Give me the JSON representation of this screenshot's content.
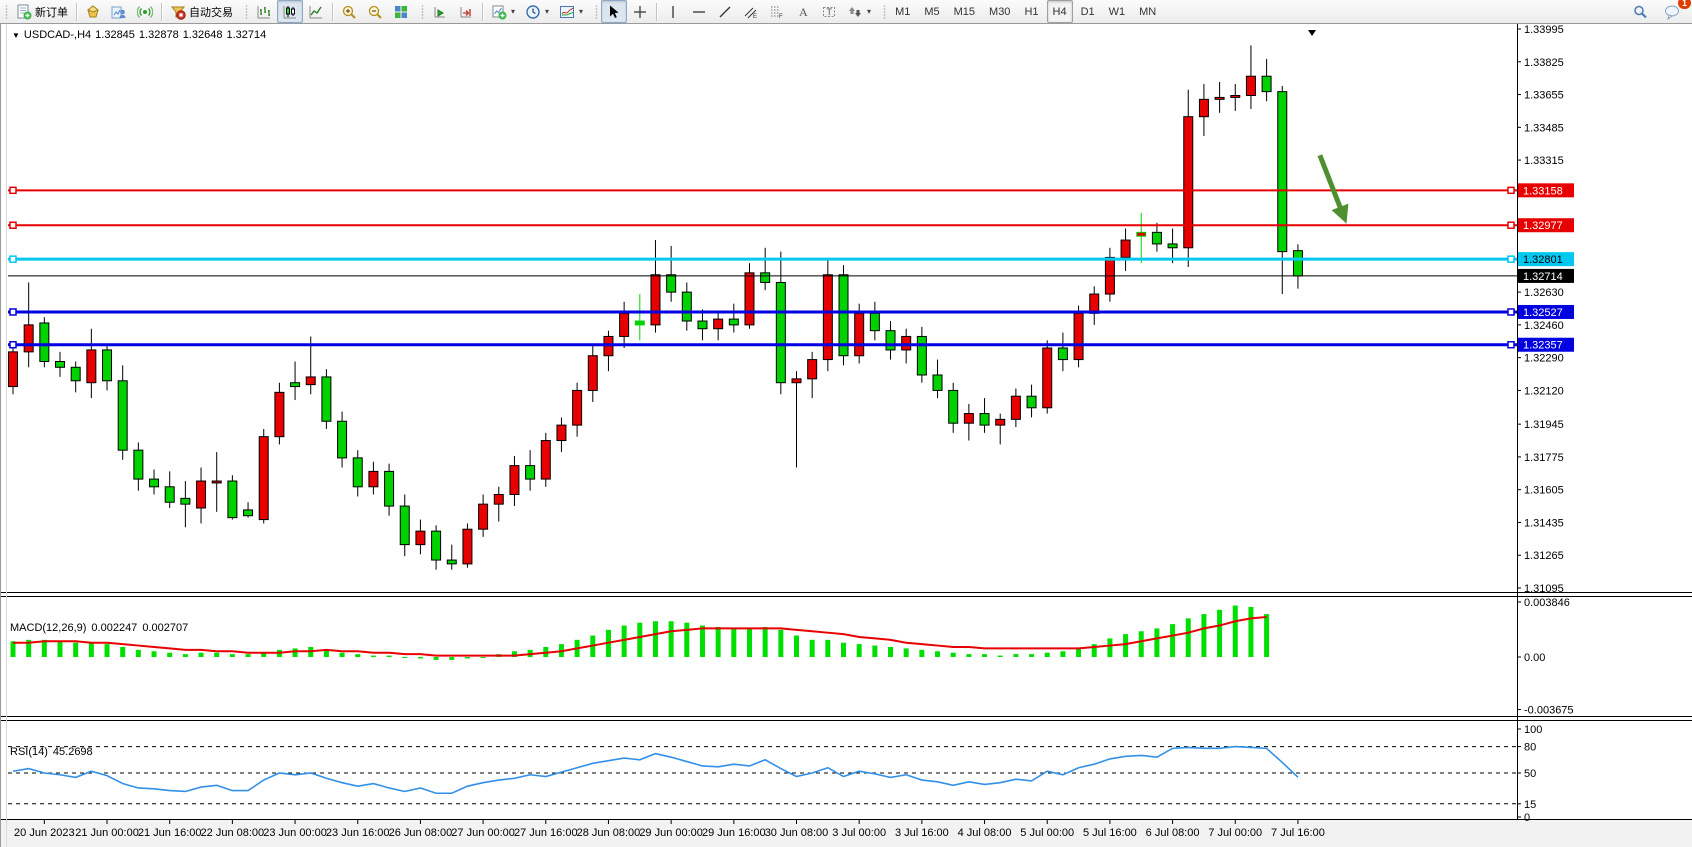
{
  "toolbar": {
    "new_order_label": "新订单",
    "autotrading_label": "自动交易",
    "timeframes": [
      "M1",
      "M5",
      "M15",
      "M30",
      "H1",
      "H4",
      "D1",
      "W1",
      "MN"
    ],
    "active_timeframe": "H4",
    "notification_badge": "1"
  },
  "chart_header": {
    "symbol_period": "USDCAD-,H4",
    "open": "1.32845",
    "high": "1.32878",
    "low": "1.32648",
    "close": "1.32714"
  },
  "indicators": {
    "macd": {
      "label": "MACD(12,26,9)",
      "value_main": "0.002247",
      "value_signal": "0.002707",
      "axis_labels": [
        {
          "v": 0.003846,
          "text": "0.003846"
        },
        {
          "v": 0,
          "text": "0.00"
        },
        {
          "v": -0.003675,
          "text": "-0.003675"
        }
      ]
    },
    "rsi": {
      "label": "RSI(14)",
      "value": "45.2698",
      "axis_labels": [
        {
          "v": 100,
          "text": "100"
        },
        {
          "v": 80,
          "text": "80"
        },
        {
          "v": 50,
          "text": "50"
        },
        {
          "v": 15,
          "text": "15"
        },
        {
          "v": 0,
          "text": "0"
        }
      ],
      "dashed_levels": [
        80,
        50,
        15
      ]
    }
  },
  "price_axis": {
    "ticks": [
      1.33995,
      1.33825,
      1.33655,
      1.33485,
      1.33315,
      1.3263,
      1.3246,
      1.3229,
      1.3212,
      1.31945,
      1.31775,
      1.31605,
      1.31435,
      1.31265,
      1.31095
    ]
  },
  "hlines": [
    {
      "price": 1.33158,
      "label": "1.33158",
      "color": "#e80000",
      "width": 2,
      "label_bg": "#e80000",
      "label_fg": "#ffffff"
    },
    {
      "price": 1.32977,
      "label": "1.32977",
      "color": "#e80000",
      "width": 2,
      "label_bg": "#e80000",
      "label_fg": "#ffffff"
    },
    {
      "price": 1.32801,
      "label": "1.32801",
      "color": "#00c8f0",
      "width": 3,
      "label_bg": "#00c8f0",
      "label_fg": "#000000"
    },
    {
      "price": 1.32527,
      "label": "1.32527",
      "color": "#0000e0",
      "width": 3,
      "label_bg": "#0000e0",
      "label_fg": "#ffffff"
    },
    {
      "price": 1.32357,
      "label": "1.32357",
      "color": "#0000e0",
      "width": 3,
      "label_bg": "#0000e0",
      "label_fg": "#ffffff"
    }
  ],
  "current_price": {
    "price": 1.32714,
    "label": "1.32714",
    "label_bg": "#000000",
    "label_fg": "#ffffff"
  },
  "time_axis": {
    "labels": [
      {
        "i": 2,
        "text": "20 Jun 2023"
      },
      {
        "i": 6,
        "text": "21 Jun 00:00"
      },
      {
        "i": 10,
        "text": "21 Jun 16:00"
      },
      {
        "i": 14,
        "text": "22 Jun 08:00"
      },
      {
        "i": 18,
        "text": "23 Jun 00:00"
      },
      {
        "i": 22,
        "text": "23 Jun 16:00"
      },
      {
        "i": 26,
        "text": "26 Jun 08:00"
      },
      {
        "i": 30,
        "text": "27 Jun 00:00"
      },
      {
        "i": 34,
        "text": "27 Jun 16:00"
      },
      {
        "i": 38,
        "text": "28 Jun 08:00"
      },
      {
        "i": 42,
        "text": "29 Jun 00:00"
      },
      {
        "i": 46,
        "text": "29 Jun 16:00"
      },
      {
        "i": 50,
        "text": "30 Jun 08:00"
      },
      {
        "i": 54,
        "text": "3 Jul 00:00"
      },
      {
        "i": 58,
        "text": "3 Jul 16:00"
      },
      {
        "i": 62,
        "text": "4 Jul 08:00"
      },
      {
        "i": 66,
        "text": "5 Jul 00:00"
      },
      {
        "i": 70,
        "text": "5 Jul 16:00"
      },
      {
        "i": 74,
        "text": "6 Jul 08:00"
      },
      {
        "i": 78,
        "text": "7 Jul 00:00"
      },
      {
        "i": 82,
        "text": "7 Jul 16:00"
      }
    ]
  },
  "chart_data": {
    "type": "candlestick",
    "symbol": "USDCAD",
    "timeframe": "H4",
    "ylim": [
      1.31095,
      1.33995
    ],
    "colors": {
      "bull": "#e80000",
      "bear": "#00d200",
      "wick": "#000000",
      "macd_hist": "#00e000",
      "macd_signal": "#e80000",
      "rsi_line": "#3390e8"
    },
    "candles": [
      [
        "20 Jun 00:00",
        1.3214,
        1.3235,
        1.321,
        1.3232
      ],
      [
        "20 Jun 04:00",
        1.3232,
        1.3268,
        1.3224,
        1.3246
      ],
      [
        "20 Jun 08:00",
        1.3247,
        1.325,
        1.3224,
        1.3227
      ],
      [
        "20 Jun 12:00",
        1.3227,
        1.3232,
        1.3219,
        1.3224
      ],
      [
        "20 Jun 16:00",
        1.3224,
        1.3227,
        1.3211,
        1.3217
      ],
      [
        "20 Jun 20:00",
        1.3216,
        1.3244,
        1.3208,
        1.3233
      ],
      [
        "21 Jun 00:00",
        1.3233,
        1.3236,
        1.3212,
        1.3217
      ],
      [
        "21 Jun 04:00",
        1.3217,
        1.3225,
        1.3176,
        1.3181
      ],
      [
        "21 Jun 08:00",
        1.3181,
        1.3185,
        1.316,
        1.3166
      ],
      [
        "21 Jun 12:00",
        1.3166,
        1.3171,
        1.3158,
        1.3162
      ],
      [
        "21 Jun 16:00",
        1.3162,
        1.317,
        1.3151,
        1.3154
      ],
      [
        "21 Jun 20:00",
        1.3156,
        1.3165,
        1.3141,
        1.3153
      ],
      [
        "22 Jun 00:00",
        1.3151,
        1.3172,
        1.3143,
        1.3165
      ],
      [
        "22 Jun 04:00",
        1.3164,
        1.318,
        1.3149,
        1.3165
      ],
      [
        "22 Jun 08:00",
        1.3165,
        1.3168,
        1.3145,
        1.3146
      ],
      [
        "22 Jun 12:00",
        1.315,
        1.3154,
        1.3146,
        1.3147
      ],
      [
        "22 Jun 16:00",
        1.3145,
        1.3192,
        1.3143,
        1.3188
      ],
      [
        "22 Jun 20:00",
        1.3188,
        1.3216,
        1.3184,
        1.3211
      ],
      [
        "23 Jun 00:00",
        1.3216,
        1.3227,
        1.3207,
        1.3214
      ],
      [
        "23 Jun 04:00",
        1.3215,
        1.324,
        1.321,
        1.3219
      ],
      [
        "23 Jun 08:00",
        1.3219,
        1.3223,
        1.3192,
        1.3196
      ],
      [
        "23 Jun 12:00",
        1.3196,
        1.3201,
        1.3172,
        1.3177
      ],
      [
        "23 Jun 16:00",
        1.3177,
        1.3181,
        1.3157,
        1.3162
      ],
      [
        "23 Jun 20:00",
        1.3162,
        1.3175,
        1.3158,
        1.317
      ],
      [
        "26 Jun 00:00",
        1.317,
        1.3174,
        1.3147,
        1.3152
      ],
      [
        "26 Jun 04:00",
        1.3152,
        1.3158,
        1.3126,
        1.3132
      ],
      [
        "26 Jun 08:00",
        1.3132,
        1.3145,
        1.3127,
        1.3139
      ],
      [
        "26 Jun 12:00",
        1.3139,
        1.3142,
        1.3119,
        1.3124
      ],
      [
        "26 Jun 16:00",
        1.3124,
        1.3132,
        1.3119,
        1.3122
      ],
      [
        "26 Jun 20:00",
        1.3122,
        1.3143,
        1.312,
        1.314
      ],
      [
        "27 Jun 00:00",
        1.314,
        1.3158,
        1.3136,
        1.3153
      ],
      [
        "27 Jun 04:00",
        1.3153,
        1.3162,
        1.3144,
        1.3158
      ],
      [
        "27 Jun 08:00",
        1.3158,
        1.3178,
        1.3152,
        1.3173
      ],
      [
        "27 Jun 12:00",
        1.3173,
        1.3181,
        1.316,
        1.3166
      ],
      [
        "27 Jun 16:00",
        1.3166,
        1.319,
        1.3162,
        1.3186
      ],
      [
        "27 Jun 20:00",
        1.3186,
        1.3198,
        1.318,
        1.3194
      ],
      [
        "28 Jun 00:00",
        1.3194,
        1.3216,
        1.3188,
        1.3212
      ],
      [
        "28 Jun 04:00",
        1.3212,
        1.3235,
        1.3206,
        1.323
      ],
      [
        "28 Jun 08:00",
        1.323,
        1.3243,
        1.3222,
        1.324
      ],
      [
        "28 Jun 12:00",
        1.324,
        1.3258,
        1.3234,
        1.3252
      ],
      [
        "28 Jun 16:00",
        1.3248,
        1.3262,
        1.3238,
        1.3246
      ],
      [
        "28 Jun 20:00",
        1.3246,
        1.329,
        1.3242,
        1.3272
      ],
      [
        "29 Jun 00:00",
        1.3272,
        1.3287,
        1.3258,
        1.3263
      ],
      [
        "29 Jun 04:00",
        1.3263,
        1.3268,
        1.3243,
        1.3248
      ],
      [
        "29 Jun 08:00",
        1.3248,
        1.3254,
        1.3238,
        1.3244
      ],
      [
        "29 Jun 12:00",
        1.3244,
        1.3252,
        1.3238,
        1.3249
      ],
      [
        "29 Jun 16:00",
        1.3249,
        1.3257,
        1.3242,
        1.3246
      ],
      [
        "29 Jun 20:00",
        1.3246,
        1.3278,
        1.3244,
        1.3273
      ],
      [
        "30 Jun 00:00",
        1.3273,
        1.3286,
        1.3264,
        1.3268
      ],
      [
        "30 Jun 04:00",
        1.3268,
        1.3284,
        1.321,
        1.3216
      ],
      [
        "30 Jun 08:00",
        1.3216,
        1.3222,
        1.3172,
        1.3218
      ],
      [
        "30 Jun 12:00",
        1.3218,
        1.3232,
        1.3208,
        1.3228
      ],
      [
        "30 Jun 16:00",
        1.3228,
        1.328,
        1.3222,
        1.3272
      ],
      [
        "30 Jun 20:00",
        1.3272,
        1.3277,
        1.3225,
        1.323
      ],
      [
        "3 Jul 00:00",
        1.323,
        1.3257,
        1.3226,
        1.3252
      ],
      [
        "3 Jul 04:00",
        1.3252,
        1.3258,
        1.3238,
        1.3243
      ],
      [
        "3 Jul 08:00",
        1.3243,
        1.3248,
        1.3228,
        1.3233
      ],
      [
        "3 Jul 12:00",
        1.3233,
        1.3244,
        1.3226,
        1.324
      ],
      [
        "3 Jul 16:00",
        1.324,
        1.3245,
        1.3216,
        1.322
      ],
      [
        "3 Jul 20:00",
        1.322,
        1.3228,
        1.3208,
        1.3212
      ],
      [
        "4 Jul 00:00",
        1.3212,
        1.3216,
        1.319,
        1.3195
      ],
      [
        "4 Jul 04:00",
        1.3195,
        1.3205,
        1.3186,
        1.32
      ],
      [
        "4 Jul 08:00",
        1.32,
        1.3208,
        1.319,
        1.3194
      ],
      [
        "4 Jul 12:00",
        1.3194,
        1.32,
        1.3184,
        1.3197
      ],
      [
        "4 Jul 16:00",
        1.3197,
        1.3213,
        1.3193,
        1.3209
      ],
      [
        "4 Jul 20:00",
        1.3209,
        1.3215,
        1.3198,
        1.3203
      ],
      [
        "5 Jul 00:00",
        1.3203,
        1.3238,
        1.32,
        1.3234
      ],
      [
        "5 Jul 04:00",
        1.3234,
        1.3242,
        1.3222,
        1.3228
      ],
      [
        "5 Jul 08:00",
        1.3228,
        1.3256,
        1.3224,
        1.3252
      ],
      [
        "5 Jul 12:00",
        1.3252,
        1.3266,
        1.3246,
        1.3262
      ],
      [
        "5 Jul 16:00",
        1.3262,
        1.3286,
        1.3258,
        1.3281
      ],
      [
        "5 Jul 20:00",
        1.3281,
        1.3296,
        1.3274,
        1.329
      ],
      [
        "6 Jul 00:00",
        1.3292,
        1.3304,
        1.3278,
        1.3294
      ],
      [
        "6 Jul 04:00",
        1.3294,
        1.3299,
        1.3284,
        1.3288
      ],
      [
        "6 Jul 08:00",
        1.3288,
        1.3296,
        1.3278,
        1.3286
      ],
      [
        "6 Jul 12:00",
        1.3286,
        1.3368,
        1.3276,
        1.3354
      ],
      [
        "6 Jul 16:00",
        1.3354,
        1.3371,
        1.3344,
        1.3363
      ],
      [
        "6 Jul 20:00",
        1.3363,
        1.3372,
        1.3356,
        1.3364
      ],
      [
        "7 Jul 00:00",
        1.3364,
        1.3371,
        1.3357,
        1.3365
      ],
      [
        "7 Jul 04:00",
        1.3365,
        1.3391,
        1.3358,
        1.3375
      ],
      [
        "7 Jul 08:00",
        1.3375,
        1.3384,
        1.3362,
        1.3367
      ],
      [
        "7 Jul 12:00",
        1.3367,
        1.337,
        1.3262,
        1.3284
      ],
      [
        "7 Jul 16:00",
        1.32845,
        1.32878,
        1.32648,
        1.32714
      ]
    ],
    "cross_bars": [
      40,
      72
    ],
    "macd_histogram": [
      0.0011,
      0.0012,
      0.0012,
      0.0011,
      0.001,
      0.001,
      0.0009,
      0.0007,
      0.0005,
      0.0004,
      0.0003,
      0.0002,
      0.0003,
      0.0003,
      0.0002,
      0.0002,
      0.0003,
      0.0005,
      0.0006,
      0.0007,
      0.0005,
      0.0003,
      0.0002,
      0.0001,
      0.0001,
      0.0,
      -0.0001,
      -0.0002,
      -0.0002,
      -0.0001,
      0.0,
      0.0002,
      0.0004,
      0.0005,
      0.0007,
      0.0009,
      0.0012,
      0.0015,
      0.0019,
      0.0022,
      0.0024,
      0.0025,
      0.0025,
      0.0024,
      0.0022,
      0.0021,
      0.002,
      0.002,
      0.0021,
      0.0019,
      0.0015,
      0.0012,
      0.0012,
      0.001,
      0.0009,
      0.0008,
      0.0007,
      0.0006,
      0.0005,
      0.0004,
      0.0003,
      0.0002,
      0.0002,
      0.0001,
      0.0002,
      0.0002,
      0.0003,
      0.0004,
      0.0006,
      0.0009,
      0.0013,
      0.0016,
      0.0018,
      0.002,
      0.0023,
      0.0027,
      0.003,
      0.0033,
      0.0036,
      0.0035,
      0.003,
      0.0024,
      0.002247
    ],
    "macd_signal": [
      0.001,
      0.001,
      0.0011,
      0.0011,
      0.0011,
      0.001,
      0.001,
      0.0009,
      0.0008,
      0.0007,
      0.0006,
      0.0005,
      0.0005,
      0.0004,
      0.0004,
      0.0003,
      0.0003,
      0.0003,
      0.0004,
      0.0004,
      0.0005,
      0.0004,
      0.0004,
      0.0003,
      0.0003,
      0.0002,
      0.0002,
      0.0001,
      0.0001,
      0.0001,
      0.0001,
      0.0001,
      0.0001,
      0.0002,
      0.0003,
      0.0004,
      0.0006,
      0.0008,
      0.001,
      0.0012,
      0.0014,
      0.0016,
      0.0018,
      0.0019,
      0.002,
      0.002,
      0.002,
      0.002,
      0.002,
      0.002,
      0.0019,
      0.0018,
      0.0017,
      0.0016,
      0.0014,
      0.0013,
      0.0012,
      0.001,
      0.0009,
      0.0008,
      0.0007,
      0.0007,
      0.0006,
      0.0006,
      0.0006,
      0.0006,
      0.0006,
      0.0006,
      0.0006,
      0.0007,
      0.0008,
      0.0009,
      0.0011,
      0.0013,
      0.0015,
      0.0017,
      0.002,
      0.0022,
      0.0025,
      0.0027,
      0.0028,
      0.0028,
      0.002707
    ],
    "rsi": [
      52,
      55,
      50,
      48,
      45,
      52,
      47,
      38,
      33,
      32,
      30,
      29,
      34,
      36,
      30,
      30,
      42,
      50,
      48,
      50,
      44,
      39,
      35,
      38,
      33,
      29,
      33,
      27,
      27,
      35,
      39,
      42,
      44,
      48,
      46,
      51,
      56,
      61,
      64,
      67,
      65,
      72,
      68,
      63,
      58,
      57,
      60,
      58,
      65,
      55,
      46,
      50,
      56,
      46,
      52,
      49,
      45,
      48,
      42,
      40,
      36,
      40,
      37,
      39,
      43,
      41,
      52,
      48,
      56,
      60,
      66,
      69,
      70,
      68,
      78,
      79,
      78,
      78,
      80,
      79,
      78,
      62,
      45.2698
    ]
  },
  "annotations": {
    "arrow": {
      "from_bar": 83.4,
      "from_price": 1.3334,
      "to_bar": 85.1,
      "to_price": 1.32985,
      "color": "#4e8f2f"
    },
    "shift_marker_bar": 82.9
  }
}
